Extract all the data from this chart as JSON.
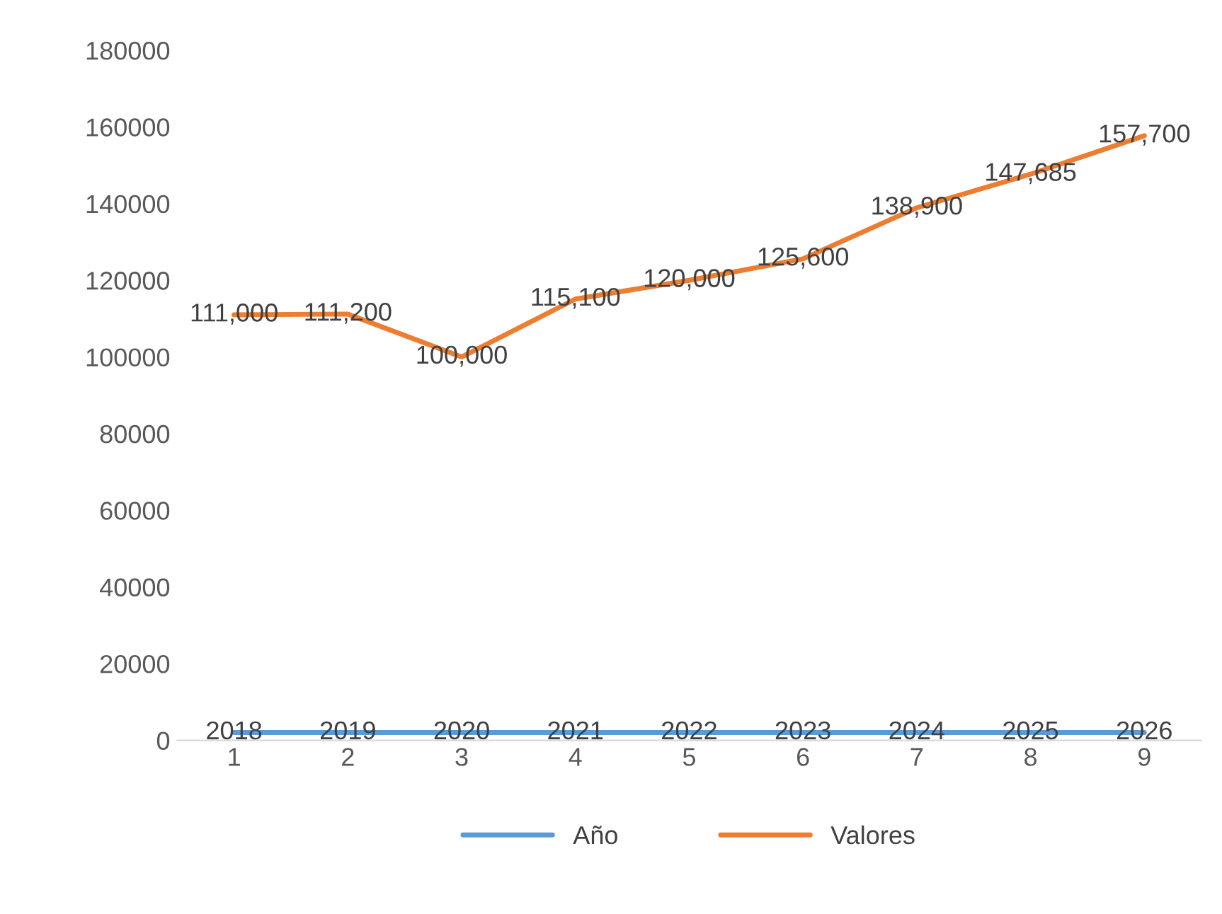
{
  "chart_data": {
    "type": "line",
    "categories": [
      "1",
      "2",
      "3",
      "4",
      "5",
      "6",
      "7",
      "8",
      "9"
    ],
    "series": [
      {
        "name": "Año",
        "color": "#5b9bd5",
        "values": [
          2018,
          2019,
          2020,
          2021,
          2022,
          2023,
          2024,
          2025,
          2026
        ],
        "value_labels": [
          "2018",
          "2019",
          "2020",
          "2021",
          "2022",
          "2023",
          "2024",
          "2025",
          "2026"
        ]
      },
      {
        "name": "Valores",
        "color": "#ed7d31",
        "values": [
          111000,
          111200,
          100000,
          115100,
          120000,
          125600,
          138900,
          147685,
          157700
        ],
        "value_labels": [
          "111,000",
          "111,200",
          "100,000",
          "115,100",
          "120,000",
          "125,600",
          "138,900",
          "147,685",
          "157,700"
        ]
      }
    ],
    "ylim": [
      0,
      180000
    ],
    "yticks": [
      0,
      20000,
      40000,
      60000,
      80000,
      100000,
      120000,
      140000,
      160000,
      180000
    ],
    "grid": false,
    "legend": "bottom",
    "marker": "none",
    "line_style": "solid"
  }
}
